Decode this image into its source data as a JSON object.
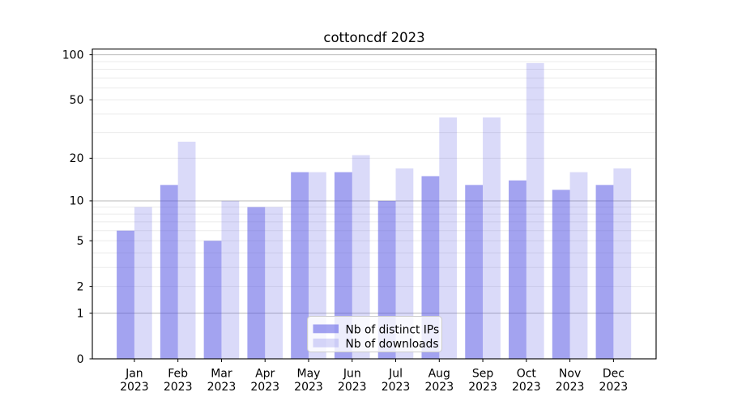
{
  "chart_data": {
    "type": "bar",
    "title": "cottoncdf 2023",
    "months": [
      "Jan",
      "Feb",
      "Mar",
      "Apr",
      "May",
      "Jun",
      "Jul",
      "Aug",
      "Sep",
      "Oct",
      "Nov",
      "Dec"
    ],
    "year": "2023",
    "series": [
      {
        "name": "Nb of distinct IPs",
        "color": "rgba(79,79,227,0.52)",
        "values": [
          6,
          13,
          5,
          9,
          16,
          16,
          10,
          15,
          13,
          14,
          12,
          13
        ]
      },
      {
        "name": "Nb of downloads",
        "color": "rgba(79,79,227,0.21)",
        "values": [
          9,
          26,
          10,
          9,
          16,
          21,
          17,
          38,
          38,
          88,
          16,
          17
        ]
      }
    ],
    "y_scale": "log1p",
    "y_ticks": [
      0,
      1,
      2,
      5,
      10,
      20,
      50,
      100
    ],
    "ylim": [
      0,
      113
    ],
    "xlabel": "",
    "ylabel": "",
    "grid": {
      "minor": [
        2,
        3,
        4,
        5,
        6,
        7,
        8,
        9,
        20,
        30,
        40,
        50,
        60,
        70,
        80,
        90
      ],
      "major": [
        1,
        10,
        100
      ],
      "minor_color": "#ebebeb",
      "major_color": "#b9b9b9"
    },
    "legend": {
      "position": "lower-center-inside",
      "border_color": "#cccccc",
      "background": "rgba(255,255,255,0.8)"
    },
    "spine_color": "#000000"
  }
}
